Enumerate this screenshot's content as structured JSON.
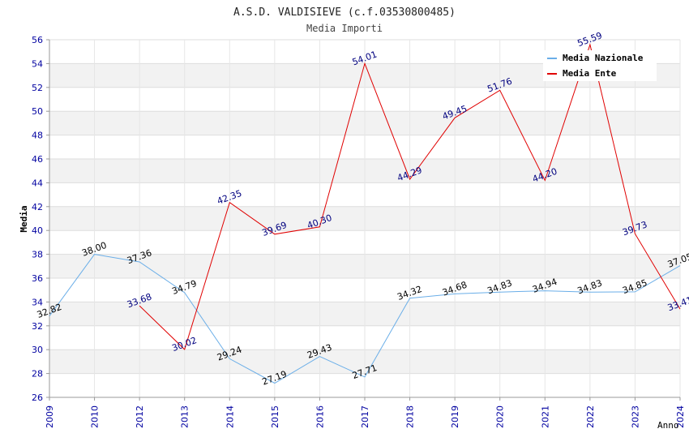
{
  "chart_data": {
    "type": "line",
    "title": "A.S.D. VALDISIEVE (c.f.03530800485)",
    "subtitle": "Media Importi",
    "ylabel": "Media",
    "xlabel": "Anno",
    "ylim": [
      26,
      56
    ],
    "yticks": [
      26,
      28,
      30,
      32,
      34,
      36,
      38,
      40,
      42,
      44,
      46,
      48,
      50,
      52,
      54,
      56
    ],
    "categories": [
      "2009",
      "2010",
      "2012",
      "2013",
      "2014",
      "2015",
      "2016",
      "2017",
      "2018",
      "2019",
      "2020",
      "2021",
      "2022",
      "2023",
      "2024"
    ],
    "legend_position": "top-right",
    "series": [
      {
        "name": "Media Nazionale",
        "color": "#6aaee8",
        "label_color": "#000000",
        "values": [
          32.82,
          38.0,
          37.36,
          34.79,
          29.24,
          27.19,
          29.43,
          27.71,
          34.32,
          34.68,
          34.83,
          34.94,
          34.83,
          34.85,
          37.05
        ],
        "labels": [
          "32.82",
          "38.00",
          "37.36",
          "34.79",
          "29.24",
          "27.19",
          "29.43",
          "27.71",
          "34.32",
          "34.68",
          "34.83",
          "34.94",
          "34.83",
          "34.85",
          "37.05"
        ]
      },
      {
        "name": "Media Ente",
        "color": "#e00000",
        "label_color": "#00007f",
        "values": [
          null,
          null,
          33.68,
          30.02,
          42.35,
          39.69,
          40.3,
          54.01,
          44.29,
          49.45,
          51.76,
          44.2,
          55.59,
          39.73,
          33.41
        ],
        "labels": [
          null,
          null,
          "33.68",
          "30.02",
          "42.35",
          "39.69",
          "40.30",
          "54.01",
          "44.29",
          "49.45",
          "51.76",
          "44.20",
          "55.59",
          "39.73",
          "33.41"
        ]
      }
    ]
  }
}
